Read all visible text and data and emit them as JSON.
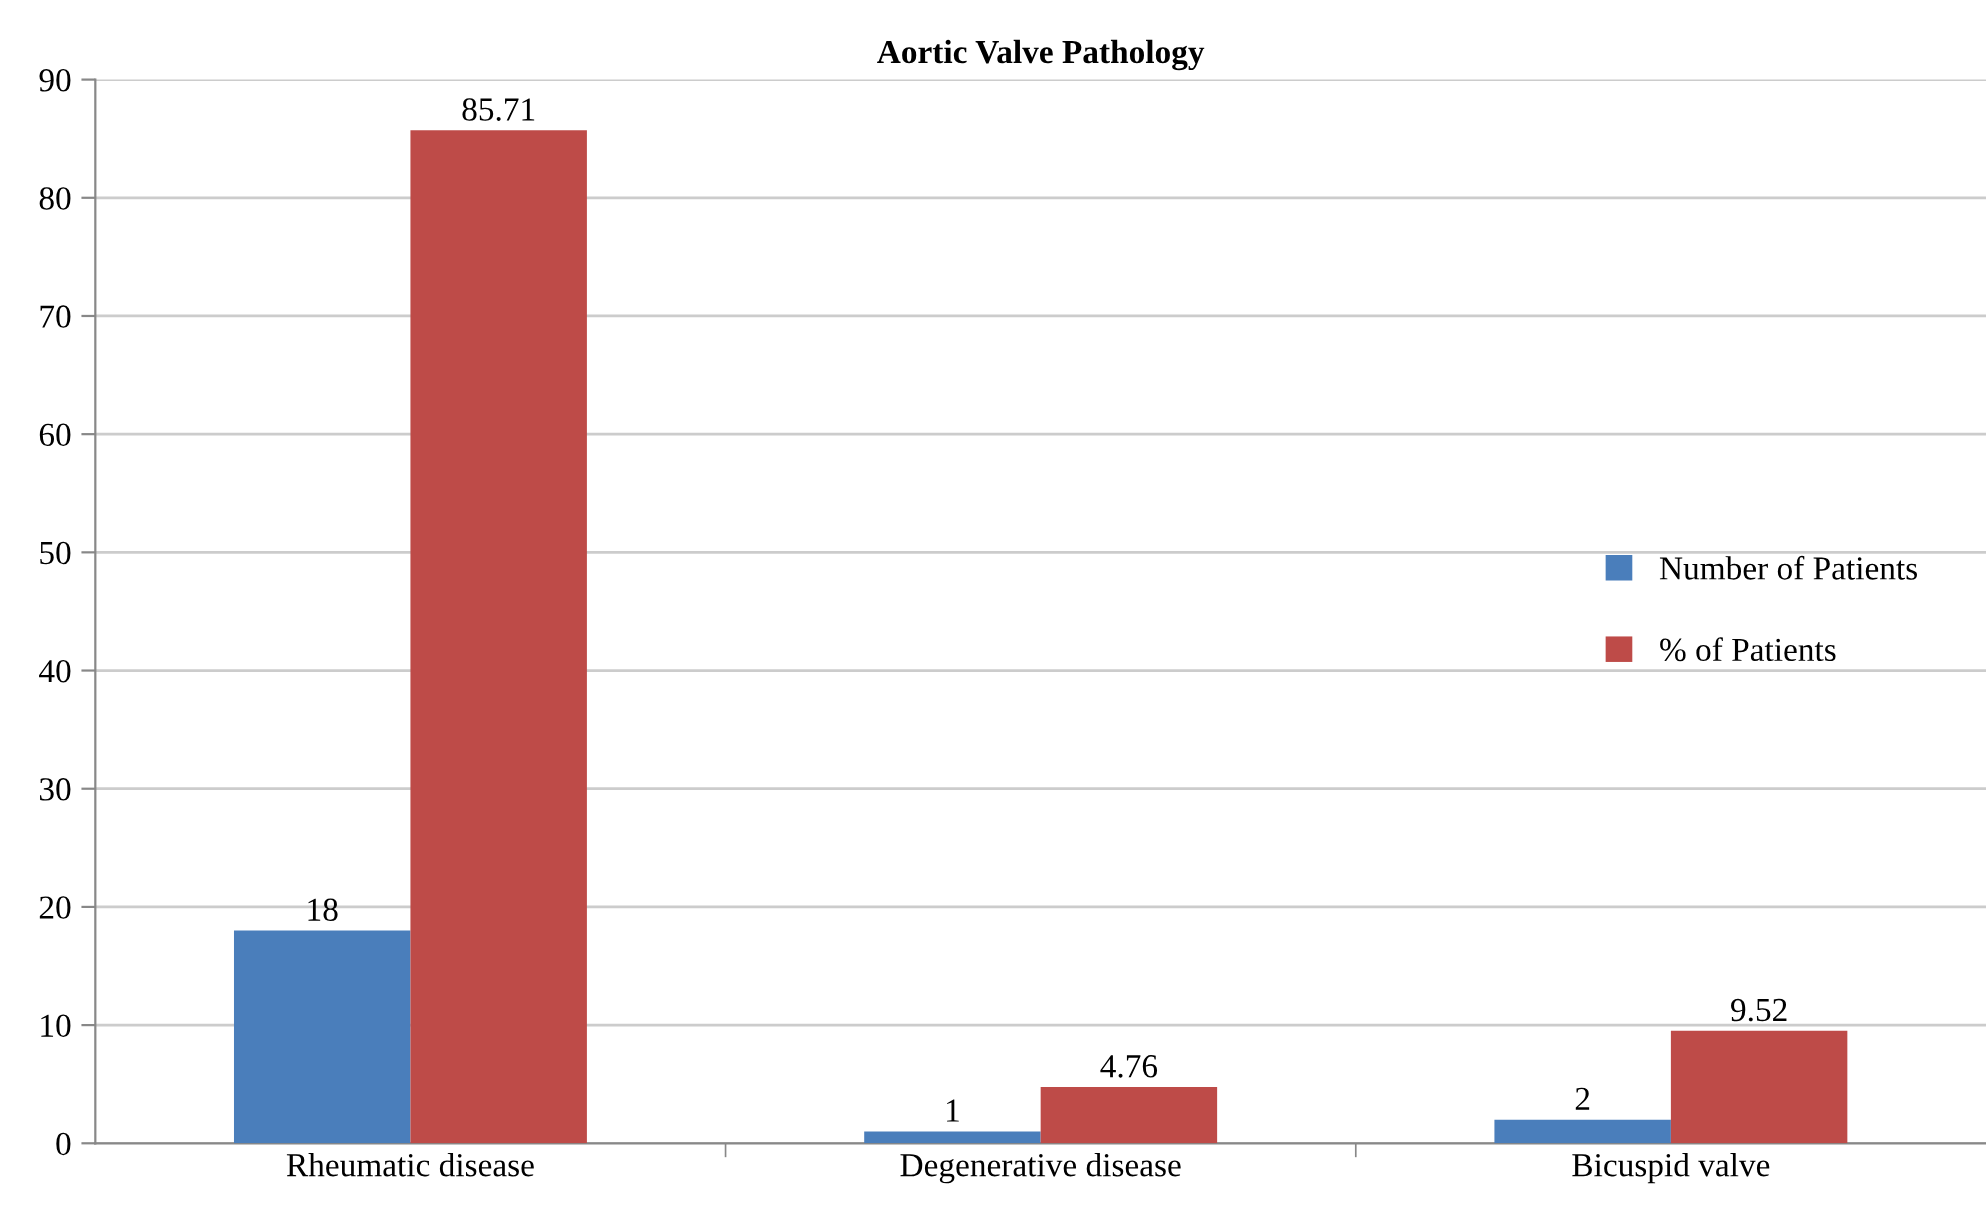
{
  "chart_data": {
    "type": "bar",
    "title": "Aortic Valve Pathology",
    "categories": [
      "Rheumatic disease",
      "Degenerative disease",
      "Bicuspid valve"
    ],
    "series": [
      {
        "name": "Number of Patients",
        "color": "#4a7ebb",
        "values": [
          18,
          1,
          2
        ]
      },
      {
        "name": "% of Patients",
        "color": "#be4b48",
        "values": [
          85.71,
          4.76,
          9.52
        ]
      }
    ],
    "ylim": [
      0,
      90
    ],
    "yticks": [
      0,
      10,
      20,
      30,
      40,
      50,
      60,
      70,
      80,
      90
    ],
    "grid": "y",
    "legend": "right",
    "data_labels": true
  }
}
